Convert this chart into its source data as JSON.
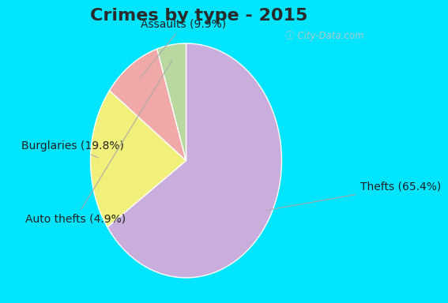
{
  "title": "Crimes by type - 2015",
  "labels": [
    "Thefts",
    "Burglaries",
    "Assaults",
    "Auto thefts"
  ],
  "values": [
    65.4,
    19.8,
    9.9,
    4.9
  ],
  "colors": [
    "#c9aedd",
    "#f0f07a",
    "#f0a8a8",
    "#b8d8a0"
  ],
  "label_texts": [
    "Thefts (65.4%)",
    "Burglaries (19.8%)",
    "Assaults (9.9%)",
    "Auto thefts (4.9%)"
  ],
  "startangle": 90,
  "bg_color_outer": "#00e5ff",
  "title_fontsize": 16,
  "label_fontsize": 10
}
